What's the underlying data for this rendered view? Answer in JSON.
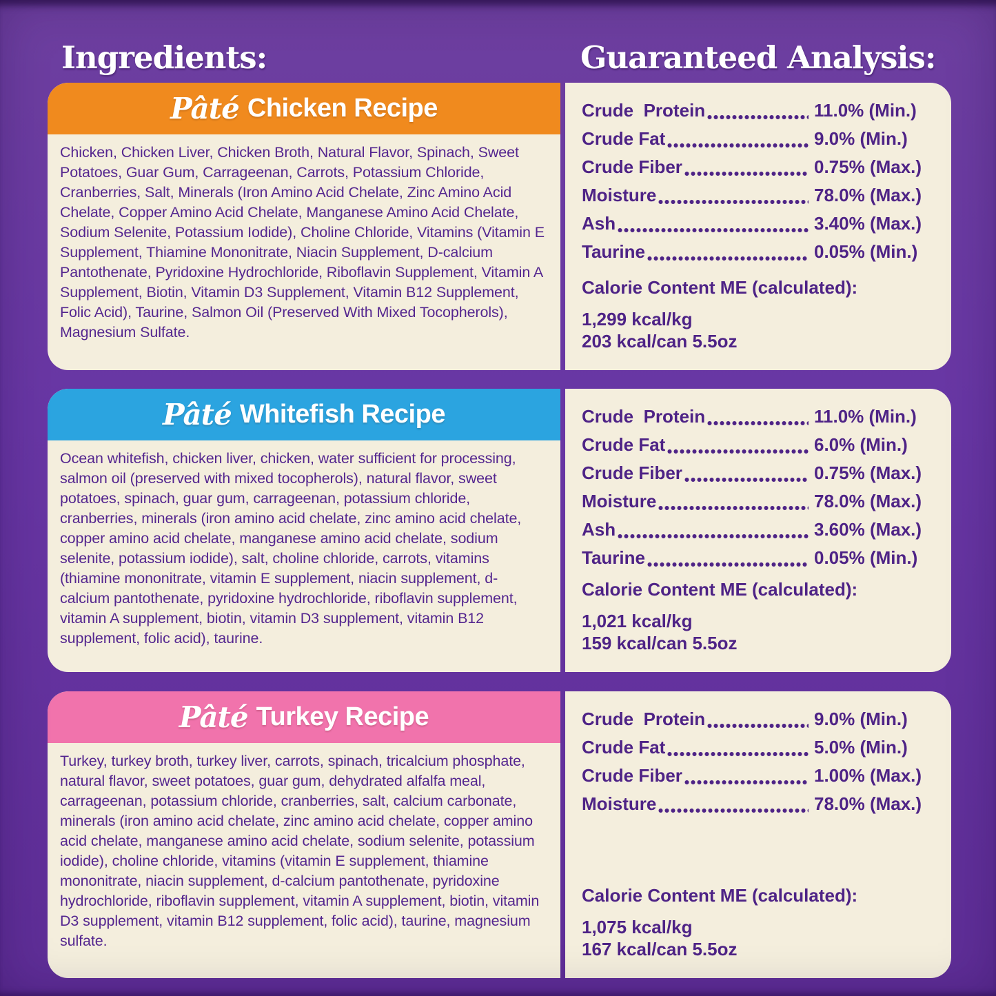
{
  "titles": {
    "ingredients": "Ingredients:",
    "analysis": "Guaranteed Analysis:"
  },
  "colors": {
    "background_purple": "#6836a4",
    "card_cream": "#f4eedd",
    "chicken_header": "#f08a1e",
    "whitefish_header": "#2ba4e0",
    "turkey_header": "#f173ac",
    "ingredient_text": "#54268f",
    "analysis_text": "#4e2386"
  },
  "recipes": [
    {
      "script": "Pâté",
      "title": "Chicken Recipe",
      "header_color": "#f08a1e",
      "ingredients": "Chicken, Chicken Liver, Chicken Broth, Natural Flavor, Spinach, Sweet Potatoes, Guar Gum, Carrageenan, Carrots, Potassium Chloride, Cranberries, Salt, Minerals (Iron Amino Acid Chelate, Zinc Amino Acid Chelate, Copper Amino Acid Chelate, Manganese Amino Acid Chelate, Sodium Selenite, Potassium Iodide), Choline Chloride, Vitamins (Vitamin E Supplement, Thiamine Mononitrate, Niacin Supplement, D-calcium Pantothenate, Pyridoxine Hydrochloride, Riboflavin Supplement, Vitamin A Supplement, Biotin, Vitamin D3 Supplement, Vitamin B12 Supplement, Folic Acid), Taurine, Salmon Oil (Preserved With Mixed Tocopherols), Magnesium Sulfate.",
      "analysis": [
        {
          "label": "Crude  Protein",
          "value": "11.0% (Min.)"
        },
        {
          "label": "Crude Fat",
          "value": "9.0% (Min.)"
        },
        {
          "label": "Crude Fiber",
          "value": "0.75% (Max.)"
        },
        {
          "label": "Moisture",
          "value": "78.0% (Max.)"
        },
        {
          "label": "Ash",
          "value": "3.40% (Max.)"
        },
        {
          "label": "Taurine",
          "value": "0.05% (Min.)"
        }
      ],
      "calorie_heading": "Calorie Content ME (calculated):",
      "kcal_per_kg": "1,299 kcal/kg",
      "kcal_per_can": "203 kcal/can 5.5oz"
    },
    {
      "script": "Pâté",
      "title": "Whitefish Recipe",
      "header_color": "#2ba4e0",
      "ingredients": "Ocean whitefish, chicken liver, chicken, water sufficient for processing, salmon oil (preserved with mixed tocopherols), natural flavor, sweet potatoes, spinach, guar gum, carrageenan, potassium chloride, cranberries, minerals (iron amino acid chelate, zinc amino acid chelate, copper amino acid chelate, manganese amino acid chelate, sodium selenite, potassium iodide), salt, choline chloride, carrots, vitamins (thiamine mononitrate, vitamin E supplement, niacin supplement, d-calcium pantothenate, pyridoxine hydrochloride, riboflavin supplement, vitamin A supplement, biotin, vitamin D3 supplement, vitamin B12 supplement, folic acid), taurine.",
      "analysis": [
        {
          "label": "Crude  Protein",
          "value": "11.0% (Min.)"
        },
        {
          "label": "Crude Fat",
          "value": "6.0% (Min.)"
        },
        {
          "label": "Crude Fiber",
          "value": "0.75% (Max.)"
        },
        {
          "label": "Moisture",
          "value": "78.0% (Max.)"
        },
        {
          "label": "Ash",
          "value": "3.60% (Max.)"
        },
        {
          "label": "Taurine",
          "value": "0.05% (Min.)"
        }
      ],
      "calorie_heading": "Calorie Content ME (calculated):",
      "kcal_per_kg": "1,021 kcal/kg",
      "kcal_per_can": "159 kcal/can 5.5oz"
    },
    {
      "script": "Pâté",
      "title": "Turkey Recipe",
      "header_color": "#f173ac",
      "ingredients": "Turkey, turkey broth, turkey liver, carrots, spinach, tricalcium phosphate, natural flavor, sweet potatoes, guar gum, dehydrated alfalfa meal, carrageenan, potassium chloride, cranberries, salt, calcium carbonate, minerals (iron amino acid chelate, zinc amino acid chelate, copper amino acid chelate, manganese amino acid chelate, sodium selenite, potassium iodide), choline chloride, vitamins (vitamin E supplement, thiamine mononitrate, niacin supplement, d-calcium pantothenate, pyridoxine hydrochloride, riboflavin supplement, vitamin A supplement, biotin, vitamin D3 supplement, vitamin B12 supplement, folic acid), taurine, magnesium sulfate.",
      "analysis": [
        {
          "label": "Crude  Protein",
          "value": "9.0% (Min.)"
        },
        {
          "label": "Crude Fat",
          "value": "5.0% (Min.)"
        },
        {
          "label": "Crude Fiber",
          "value": "1.00% (Max.)"
        },
        {
          "label": "Moisture",
          "value": "78.0% (Max.)"
        }
      ],
      "calorie_heading": "Calorie Content ME (calculated):",
      "kcal_per_kg": "1,075 kcal/kg",
      "kcal_per_can": "167 kcal/can 5.5oz"
    }
  ]
}
